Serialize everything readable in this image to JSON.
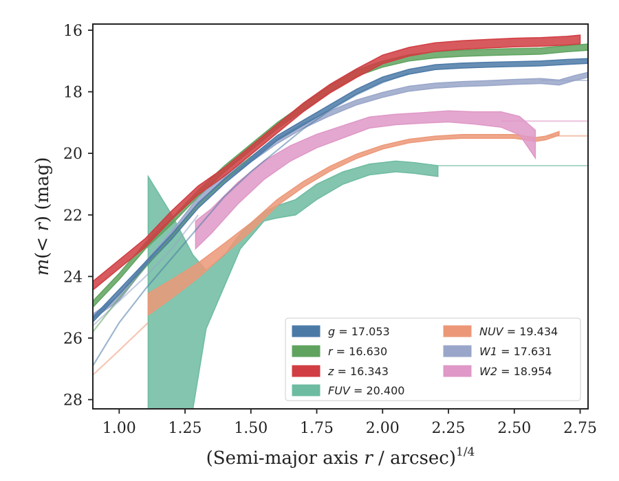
{
  "chart_data": {
    "type": "line",
    "xlabel_main": "(Semi-major axis ",
    "xlabel_var": "r",
    "xlabel_unit": " / arcsec)",
    "xlabel_exp": "1/4",
    "ylabel": "m(< r) (mag)",
    "xlim": [
      0.9,
      2.78
    ],
    "ylim": [
      28.3,
      15.8
    ],
    "y_inverted": true,
    "xticks": [
      "1.00",
      "1.25",
      "1.50",
      "1.75",
      "2.00",
      "2.25",
      "2.50",
      "2.75"
    ],
    "yticks": [
      "16",
      "18",
      "20",
      "22",
      "24",
      "26",
      "28"
    ],
    "legend_position": "lower-right",
    "legend": [
      {
        "sym": "g",
        "val": "= 17.053",
        "color": "#4c7aa7"
      },
      {
        "sym": "r",
        "val": "= 16.630",
        "color": "#5fa35f"
      },
      {
        "sym": "z",
        "val": "= 16.343",
        "color": "#d03d42"
      },
      {
        "sym": "FUV",
        "val": "= 20.400",
        "color": "#6dbba0"
      },
      {
        "sym": "NUV",
        "val": "= 19.434",
        "color": "#ec9878"
      },
      {
        "sym": "W1",
        "val": "= 17.631",
        "color": "#99a6c9"
      },
      {
        "sym": "W2",
        "val": "= 18.954",
        "color": "#df98c7"
      }
    ],
    "series": [
      {
        "name": "g",
        "color": "#4c7aa7",
        "total": 17.053,
        "x": [
          0.9,
          1.0,
          1.1,
          1.2,
          1.3,
          1.4,
          1.5,
          1.6,
          1.7,
          1.8,
          1.9,
          2.0,
          2.1,
          2.2,
          2.3,
          2.4,
          2.5,
          2.6,
          2.7,
          2.78
        ],
        "y": [
          25.4,
          24.5,
          23.6,
          22.7,
          21.7,
          20.9,
          20.2,
          19.5,
          19.0,
          18.5,
          18.0,
          17.6,
          17.35,
          17.2,
          17.15,
          17.12,
          17.1,
          17.08,
          17.03,
          17.0
        ],
        "halfwidth": 0.08,
        "x_alt": [
          0.9,
          1.0,
          1.1,
          1.2,
          1.3,
          1.4,
          1.5,
          1.6,
          1.7,
          1.8,
          1.9,
          2.0,
          2.1
        ],
        "y_alt": [
          26.9,
          25.5,
          24.4,
          23.4,
          22.4,
          21.4,
          20.6,
          19.9,
          19.2,
          18.6,
          18.1,
          17.7,
          17.4
        ]
      },
      {
        "name": "r",
        "color": "#5fa35f",
        "total": 16.63,
        "x": [
          0.9,
          1.0,
          1.1,
          1.2,
          1.3,
          1.4,
          1.5,
          1.6,
          1.7,
          1.8,
          1.9,
          2.0,
          2.1,
          2.2,
          2.3,
          2.4,
          2.5,
          2.6,
          2.7,
          2.78
        ],
        "y": [
          24.9,
          24.0,
          23.0,
          22.2,
          21.3,
          20.5,
          19.8,
          19.1,
          18.5,
          17.9,
          17.4,
          17.1,
          16.9,
          16.8,
          16.75,
          16.72,
          16.7,
          16.68,
          16.6,
          16.55
        ],
        "halfwidth": 0.1,
        "x_alt": [
          0.9,
          1.0,
          1.1,
          1.2,
          1.3,
          1.4,
          1.5
        ],
        "y_alt": [
          25.8,
          24.7,
          23.7,
          22.7,
          21.7,
          20.9,
          20.1
        ]
      },
      {
        "name": "z",
        "color": "#d03d42",
        "total": 16.343,
        "x": [
          0.9,
          1.0,
          1.1,
          1.2,
          1.3,
          1.4,
          1.5,
          1.6,
          1.7,
          1.8,
          1.9,
          2.0,
          2.1,
          2.2,
          2.3,
          2.4,
          2.5,
          2.6,
          2.7,
          2.75
        ],
        "y": [
          24.3,
          23.6,
          22.9,
          22.0,
          21.2,
          20.6,
          19.9,
          19.2,
          18.5,
          17.9,
          17.4,
          16.95,
          16.7,
          16.55,
          16.48,
          16.44,
          16.4,
          16.38,
          16.34,
          16.3
        ],
        "halfwidth": 0.14
      },
      {
        "name": "FUV",
        "color": "#6dbba0",
        "total": 20.4,
        "x": [
          1.11,
          1.2,
          1.28,
          1.33,
          1.4,
          1.46,
          1.55,
          1.6,
          1.67,
          1.75,
          1.85,
          1.95,
          2.05,
          2.12,
          2.21
        ],
        "y_upper": [
          20.75,
          22.0,
          23.3,
          23.8,
          23.3,
          22.6,
          21.9,
          21.7,
          21.5,
          21.0,
          20.6,
          20.35,
          20.25,
          20.3,
          20.4
        ],
        "y_lower": [
          28.3,
          28.3,
          28.3,
          25.7,
          24.3,
          23.1,
          22.2,
          22.1,
          22.0,
          21.5,
          21.0,
          20.7,
          20.6,
          20.65,
          20.75
        ],
        "extension_x": [
          2.21,
          2.78
        ],
        "extension_y": 20.4
      },
      {
        "name": "NUV",
        "color": "#ec9878",
        "total": 19.434,
        "x": [
          1.11,
          1.2,
          1.3,
          1.4,
          1.5,
          1.6,
          1.7,
          1.8,
          1.9,
          2.0,
          2.1,
          2.2,
          2.3,
          2.4,
          2.5,
          2.58,
          2.62,
          2.67
        ],
        "y": [
          24.9,
          24.4,
          23.8,
          23.1,
          22.4,
          21.6,
          21.0,
          20.5,
          20.1,
          19.8,
          19.6,
          19.5,
          19.45,
          19.45,
          19.45,
          19.55,
          19.5,
          19.35
        ],
        "halfwidth": [
          0.35,
          0.3,
          0.24,
          0.18,
          0.14,
          0.1,
          0.09,
          0.08,
          0.07,
          0.06,
          0.06,
          0.06,
          0.06,
          0.06,
          0.06,
          0.06,
          0.06,
          0.06
        ],
        "x_alt": [
          0.9,
          1.0,
          1.11
        ],
        "y_alt": [
          27.2,
          26.4,
          25.5
        ],
        "extension_x": [
          2.62,
          2.78
        ],
        "extension_y": 19.434
      },
      {
        "name": "W1",
        "color": "#99a6c9",
        "total": 17.631,
        "x": [
          0.9,
          1.0,
          1.1,
          1.2,
          1.3,
          1.4,
          1.5,
          1.6,
          1.7,
          1.8,
          1.9,
          2.0,
          2.1,
          2.2,
          2.3,
          2.4,
          2.5,
          2.6,
          2.67,
          2.73,
          2.78
        ],
        "y": [
          25.3,
          24.7,
          23.6,
          22.6,
          21.5,
          20.8,
          20.2,
          19.6,
          19.1,
          18.7,
          18.35,
          18.1,
          17.9,
          17.8,
          17.75,
          17.72,
          17.68,
          17.65,
          17.7,
          17.55,
          17.45
        ],
        "halfwidth": 0.08,
        "x_alt": [
          0.9,
          1.0,
          1.1,
          1.2,
          1.3
        ],
        "y_alt": [
          25.6,
          24.8,
          24.0,
          23.1,
          22.0
        ],
        "extension_x": [
          2.6,
          2.78
        ],
        "extension_y": 17.631
      },
      {
        "name": "W2",
        "color": "#df98c7",
        "total": 18.954,
        "x": [
          1.29,
          1.35,
          1.45,
          1.55,
          1.65,
          1.75,
          1.85,
          1.95,
          2.05,
          2.15,
          2.25,
          2.35,
          2.45,
          2.52,
          2.58
        ],
        "y": [
          22.65,
          22.2,
          21.3,
          20.55,
          20.0,
          19.6,
          19.3,
          19.0,
          18.9,
          18.85,
          18.8,
          18.85,
          18.9,
          19.1,
          19.7
        ],
        "halfwidth": [
          0.45,
          0.4,
          0.35,
          0.3,
          0.25,
          0.22,
          0.2,
          0.18,
          0.17,
          0.17,
          0.18,
          0.2,
          0.25,
          0.3,
          0.45
        ],
        "extension_x": [
          2.45,
          2.78
        ],
        "extension_y": 18.954
      }
    ]
  }
}
